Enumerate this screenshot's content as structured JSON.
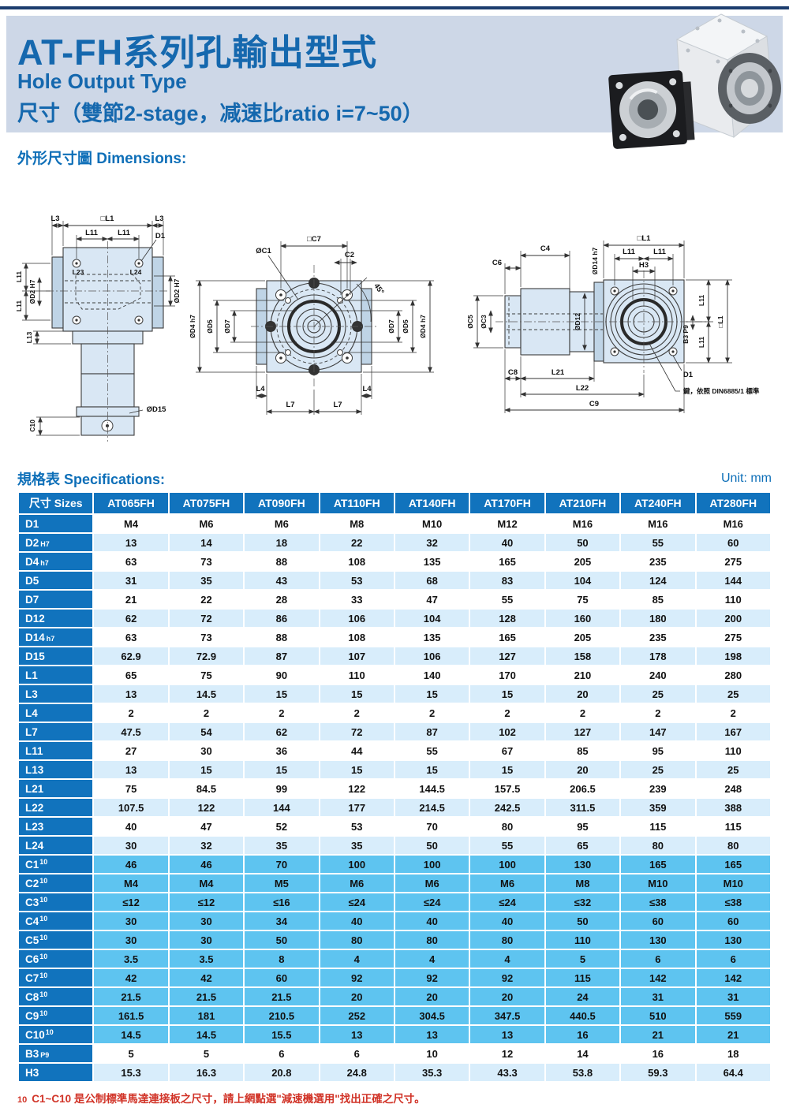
{
  "header": {
    "title_cn": "AT-FH系列孔輸出型式",
    "subtitle_en": "Hole Output Type",
    "subtitle_cn": "尺寸（雙節2-stage，减速比ratio i=7~50）"
  },
  "sections": {
    "dimensions_label": "外形尺寸圖 Dimensions:",
    "specs_label": "規格表 Specifications:",
    "unit_label": "Unit: mm"
  },
  "colors": {
    "title_blue": "#1568ae",
    "table_blue": "#1173bd",
    "row_light_blue": "#d8edfb",
    "row_cyan": "#5ec4f0",
    "band_bg": "#cdd7e7",
    "note_red": "#d13327"
  },
  "drawings": {
    "view1": [
      "L3",
      "□L1",
      "L3",
      "L11",
      "L11",
      "D1",
      "L23",
      "L24",
      "ØD2 H7",
      "L11",
      "L11",
      "ØD2 H7",
      "L13",
      "C10",
      "ØD15"
    ],
    "view2": [
      "□C7",
      "ØC1",
      "C2",
      "45°",
      "ØD4 h7",
      "ØD5",
      "ØD7",
      "ØD7",
      "ØD5",
      "ØD4 h7",
      "L4",
      "L4",
      "L7",
      "L7"
    ],
    "view3": [
      "C4",
      "C6",
      "ØD14 h7",
      "□L1",
      "L11",
      "L11",
      "H3",
      "ØC5",
      "ØC3",
      "ØD12",
      "L11",
      "□L1",
      "L11",
      "B3 P9",
      "C8",
      "L21",
      "L22",
      "C9",
      "D1",
      "鍵，依照 DIN6885/1 標準"
    ]
  },
  "table": {
    "header": [
      "尺寸 Sizes",
      "AT065FH",
      "AT075FH",
      "AT090FH",
      "AT110FH",
      "AT140FH",
      "AT170FH",
      "AT210FH",
      "AT240FH",
      "AT280FH"
    ],
    "rows": [
      {
        "label": "D1",
        "suffix": "",
        "sfx": "none",
        "bg": "w",
        "values": [
          "M4",
          "M6",
          "M6",
          "M8",
          "M10",
          "M12",
          "M16",
          "M16",
          "M16"
        ]
      },
      {
        "label": "D2",
        "suffix": "H7",
        "sfx": "sub",
        "bg": "b",
        "values": [
          "13",
          "14",
          "18",
          "22",
          "32",
          "40",
          "50",
          "55",
          "60"
        ]
      },
      {
        "label": "D4",
        "suffix": "h7",
        "sfx": "sub",
        "bg": "w",
        "values": [
          "63",
          "73",
          "88",
          "108",
          "135",
          "165",
          "205",
          "235",
          "275"
        ]
      },
      {
        "label": "D5",
        "suffix": "",
        "sfx": "none",
        "bg": "b",
        "values": [
          "31",
          "35",
          "43",
          "53",
          "68",
          "83",
          "104",
          "124",
          "144"
        ]
      },
      {
        "label": "D7",
        "suffix": "",
        "sfx": "none",
        "bg": "w",
        "values": [
          "21",
          "22",
          "28",
          "33",
          "47",
          "55",
          "75",
          "85",
          "110"
        ]
      },
      {
        "label": "D12",
        "suffix": "",
        "sfx": "none",
        "bg": "b",
        "values": [
          "62",
          "72",
          "86",
          "106",
          "104",
          "128",
          "160",
          "180",
          "200"
        ]
      },
      {
        "label": "D14",
        "suffix": "h7",
        "sfx": "sub",
        "bg": "w",
        "values": [
          "63",
          "73",
          "88",
          "108",
          "135",
          "165",
          "205",
          "235",
          "275"
        ]
      },
      {
        "label": "D15",
        "suffix": "",
        "sfx": "none",
        "bg": "b",
        "values": [
          "62.9",
          "72.9",
          "87",
          "107",
          "106",
          "127",
          "158",
          "178",
          "198"
        ]
      },
      {
        "label": "L1",
        "suffix": "",
        "sfx": "none",
        "bg": "w",
        "values": [
          "65",
          "75",
          "90",
          "110",
          "140",
          "170",
          "210",
          "240",
          "280"
        ]
      },
      {
        "label": "L3",
        "suffix": "",
        "sfx": "none",
        "bg": "b",
        "values": [
          "13",
          "14.5",
          "15",
          "15",
          "15",
          "15",
          "20",
          "25",
          "25"
        ]
      },
      {
        "label": "L4",
        "suffix": "",
        "sfx": "none",
        "bg": "w",
        "values": [
          "2",
          "2",
          "2",
          "2",
          "2",
          "2",
          "2",
          "2",
          "2"
        ]
      },
      {
        "label": "L7",
        "suffix": "",
        "sfx": "none",
        "bg": "b",
        "values": [
          "47.5",
          "54",
          "62",
          "72",
          "87",
          "102",
          "127",
          "147",
          "167"
        ]
      },
      {
        "label": "L11",
        "suffix": "",
        "sfx": "none",
        "bg": "w",
        "values": [
          "27",
          "30",
          "36",
          "44",
          "55",
          "67",
          "85",
          "95",
          "110"
        ]
      },
      {
        "label": "L13",
        "suffix": "",
        "sfx": "none",
        "bg": "b",
        "values": [
          "13",
          "15",
          "15",
          "15",
          "15",
          "15",
          "20",
          "25",
          "25"
        ]
      },
      {
        "label": "L21",
        "suffix": "",
        "sfx": "none",
        "bg": "w",
        "values": [
          "75",
          "84.5",
          "99",
          "122",
          "144.5",
          "157.5",
          "206.5",
          "239",
          "248"
        ]
      },
      {
        "label": "L22",
        "suffix": "",
        "sfx": "none",
        "bg": "b",
        "values": [
          "107.5",
          "122",
          "144",
          "177",
          "214.5",
          "242.5",
          "311.5",
          "359",
          "388"
        ]
      },
      {
        "label": "L23",
        "suffix": "",
        "sfx": "none",
        "bg": "w",
        "values": [
          "40",
          "47",
          "52",
          "53",
          "70",
          "80",
          "95",
          "115",
          "115"
        ]
      },
      {
        "label": "L24",
        "suffix": "",
        "sfx": "none",
        "bg": "b",
        "values": [
          "30",
          "32",
          "35",
          "35",
          "50",
          "55",
          "65",
          "80",
          "80"
        ]
      },
      {
        "label": "C1",
        "suffix": "10",
        "sfx": "sup",
        "bg": "c",
        "values": [
          "46",
          "46",
          "70",
          "100",
          "100",
          "100",
          "130",
          "165",
          "165"
        ]
      },
      {
        "label": "C2",
        "suffix": "10",
        "sfx": "sup",
        "bg": "c",
        "values": [
          "M4",
          "M4",
          "M5",
          "M6",
          "M6",
          "M6",
          "M8",
          "M10",
          "M10"
        ]
      },
      {
        "label": "C3",
        "suffix": "10",
        "sfx": "sup",
        "bg": "c",
        "values": [
          "≤12",
          "≤12",
          "≤16",
          "≤24",
          "≤24",
          "≤24",
          "≤32",
          "≤38",
          "≤38"
        ]
      },
      {
        "label": "C4",
        "suffix": "10",
        "sfx": "sup",
        "bg": "c",
        "values": [
          "30",
          "30",
          "34",
          "40",
          "40",
          "40",
          "50",
          "60",
          "60"
        ]
      },
      {
        "label": "C5",
        "suffix": "10",
        "sfx": "sup",
        "bg": "c",
        "values": [
          "30",
          "30",
          "50",
          "80",
          "80",
          "80",
          "110",
          "130",
          "130"
        ]
      },
      {
        "label": "C6",
        "suffix": "10",
        "sfx": "sup",
        "bg": "c",
        "values": [
          "3.5",
          "3.5",
          "8",
          "4",
          "4",
          "4",
          "5",
          "6",
          "6"
        ]
      },
      {
        "label": "C7",
        "suffix": "10",
        "sfx": "sup",
        "bg": "c",
        "values": [
          "42",
          "42",
          "60",
          "92",
          "92",
          "92",
          "115",
          "142",
          "142"
        ]
      },
      {
        "label": "C8",
        "suffix": "10",
        "sfx": "sup",
        "bg": "c",
        "values": [
          "21.5",
          "21.5",
          "21.5",
          "20",
          "20",
          "20",
          "24",
          "31",
          "31"
        ]
      },
      {
        "label": "C9",
        "suffix": "10",
        "sfx": "sup",
        "bg": "c",
        "values": [
          "161.5",
          "181",
          "210.5",
          "252",
          "304.5",
          "347.5",
          "440.5",
          "510",
          "559"
        ]
      },
      {
        "label": "C10",
        "suffix": "10",
        "sfx": "sup",
        "bg": "c",
        "values": [
          "14.5",
          "14.5",
          "15.5",
          "13",
          "13",
          "13",
          "16",
          "21",
          "21"
        ]
      },
      {
        "label": "B3",
        "suffix": "P9",
        "sfx": "sub",
        "bg": "w",
        "values": [
          "5",
          "5",
          "6",
          "6",
          "10",
          "12",
          "14",
          "16",
          "18"
        ]
      },
      {
        "label": "H3",
        "suffix": "",
        "sfx": "none",
        "bg": "b",
        "values": [
          "15.3",
          "16.3",
          "20.8",
          "24.8",
          "35.3",
          "43.3",
          "53.8",
          "59.3",
          "64.4"
        ]
      }
    ]
  },
  "footnote": {
    "marker": "10",
    "text": "C1~C10 是公制標準馬達連接板之尺寸，請上網點選\"減速機選用\"找出正確之尺寸。"
  }
}
